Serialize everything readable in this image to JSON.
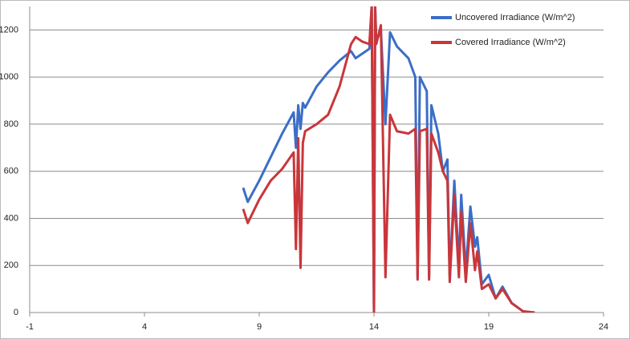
{
  "chart_data": {
    "type": "line",
    "x": [
      8.3,
      8.5,
      9,
      9.5,
      10,
      10.5,
      10.6,
      10.7,
      10.8,
      10.9,
      11,
      11.5,
      12,
      12.5,
      13,
      13.2,
      13.5,
      13.8,
      13.9,
      14,
      14.05,
      14.1,
      14.3,
      14.5,
      14.7,
      15,
      15.5,
      15.8,
      15.9,
      16,
      16.3,
      16.4,
      16.5,
      16.8,
      17,
      17.2,
      17.3,
      17.5,
      17.7,
      17.8,
      18,
      18.2,
      18.4,
      18.5,
      18.7,
      19,
      19.3,
      19.6,
      20,
      20.5,
      21
    ],
    "series": [
      {
        "name": "Uncovered Irradiance (W/m^2)",
        "color": "#3c6ec6",
        "values": [
          530,
          470,
          560,
          660,
          760,
          850,
          700,
          880,
          780,
          890,
          870,
          960,
          1020,
          1070,
          1110,
          1080,
          1100,
          1120,
          1300,
          0,
          1300,
          1150,
          1200,
          800,
          1190,
          1130,
          1080,
          1000,
          150,
          1000,
          940,
          150,
          880,
          760,
          600,
          650,
          150,
          560,
          200,
          500,
          180,
          450,
          280,
          320,
          120,
          160,
          60,
          110,
          40,
          5,
          0
        ]
      },
      {
        "name": "Covered Irradiance (W/m^2)",
        "color": "#c9363a",
        "values": [
          440,
          380,
          480,
          560,
          610,
          680,
          270,
          740,
          190,
          720,
          770,
          800,
          840,
          960,
          1140,
          1170,
          1150,
          1140,
          1300,
          0,
          1300,
          1140,
          1220,
          150,
          840,
          770,
          760,
          780,
          140,
          770,
          780,
          140,
          760,
          680,
          600,
          560,
          130,
          500,
          150,
          430,
          130,
          380,
          180,
          260,
          100,
          120,
          60,
          100,
          40,
          5,
          0
        ]
      }
    ],
    "xlim": [
      -1,
      24
    ],
    "xticks": [
      -1,
      4,
      9,
      14,
      19,
      24
    ],
    "ylim": [
      0,
      1300
    ],
    "yticks": [
      0,
      200,
      400,
      600,
      800,
      1000,
      1200
    ],
    "grid": true,
    "legend": "top-right"
  }
}
